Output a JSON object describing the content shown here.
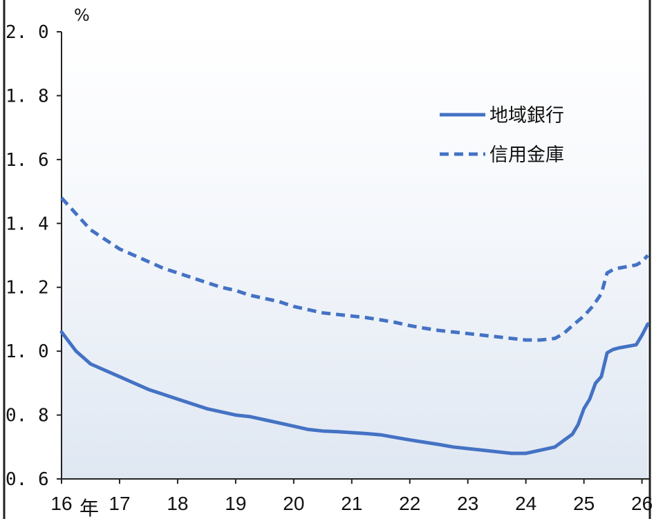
{
  "chart_data": {
    "type": "line",
    "ylabel": "%",
    "xlabel_suffix": "年",
    "ylim": [
      0.6,
      2.0
    ],
    "xlim": [
      16,
      26.1
    ],
    "y_ticks": [
      "2.0",
      "1.8",
      "1.6",
      "1.4",
      "1.2",
      "1.0",
      "0.8",
      "0.6"
    ],
    "x_ticks": [
      "16",
      "17",
      "18",
      "19",
      "20",
      "21",
      "22",
      "23",
      "24",
      "25",
      "26"
    ],
    "grid": false,
    "legend_position": "top-right",
    "series": [
      {
        "name": "地域銀行",
        "style": "solid",
        "color": "#4472c4",
        "x": [
          16.0,
          16.25,
          16.5,
          16.75,
          17.0,
          17.25,
          17.5,
          17.75,
          18.0,
          18.25,
          18.5,
          18.75,
          19.0,
          19.25,
          19.5,
          19.75,
          20.0,
          20.25,
          20.5,
          20.75,
          21.0,
          21.25,
          21.5,
          21.75,
          22.0,
          22.25,
          22.5,
          22.75,
          23.0,
          23.25,
          23.5,
          23.75,
          24.0,
          24.25,
          24.5,
          24.65,
          24.8,
          24.9,
          25.0,
          25.1,
          25.2,
          25.3,
          25.4,
          25.5,
          25.6,
          25.75,
          25.9,
          26.0,
          26.1
        ],
        "values": [
          1.06,
          1.0,
          0.96,
          0.94,
          0.92,
          0.9,
          0.88,
          0.865,
          0.85,
          0.835,
          0.82,
          0.81,
          0.8,
          0.795,
          0.785,
          0.775,
          0.765,
          0.755,
          0.75,
          0.748,
          0.745,
          0.742,
          0.738,
          0.73,
          0.722,
          0.715,
          0.708,
          0.7,
          0.695,
          0.69,
          0.685,
          0.68,
          0.68,
          0.69,
          0.7,
          0.72,
          0.74,
          0.77,
          0.82,
          0.85,
          0.9,
          0.92,
          0.995,
          1.005,
          1.01,
          1.015,
          1.02,
          1.05,
          1.085
        ]
      },
      {
        "name": "信用金庫",
        "style": "dashed",
        "color": "#4472c4",
        "x": [
          16.0,
          16.25,
          16.5,
          16.75,
          17.0,
          17.25,
          17.5,
          17.75,
          18.0,
          18.25,
          18.5,
          18.75,
          19.0,
          19.25,
          19.5,
          19.75,
          20.0,
          20.25,
          20.5,
          20.75,
          21.0,
          21.25,
          21.5,
          21.75,
          22.0,
          22.25,
          22.5,
          22.75,
          23.0,
          23.25,
          23.5,
          23.75,
          24.0,
          24.25,
          24.5,
          24.65,
          24.8,
          25.0,
          25.15,
          25.3,
          25.4,
          25.5,
          25.6,
          25.75,
          25.9,
          26.0,
          26.1
        ],
        "values": [
          1.48,
          1.43,
          1.38,
          1.35,
          1.32,
          1.3,
          1.28,
          1.26,
          1.245,
          1.23,
          1.215,
          1.2,
          1.19,
          1.175,
          1.165,
          1.155,
          1.14,
          1.13,
          1.12,
          1.115,
          1.11,
          1.105,
          1.098,
          1.09,
          1.08,
          1.072,
          1.065,
          1.06,
          1.055,
          1.05,
          1.045,
          1.04,
          1.035,
          1.035,
          1.04,
          1.055,
          1.08,
          1.11,
          1.14,
          1.18,
          1.245,
          1.255,
          1.26,
          1.265,
          1.27,
          1.28,
          1.3
        ]
      }
    ]
  }
}
